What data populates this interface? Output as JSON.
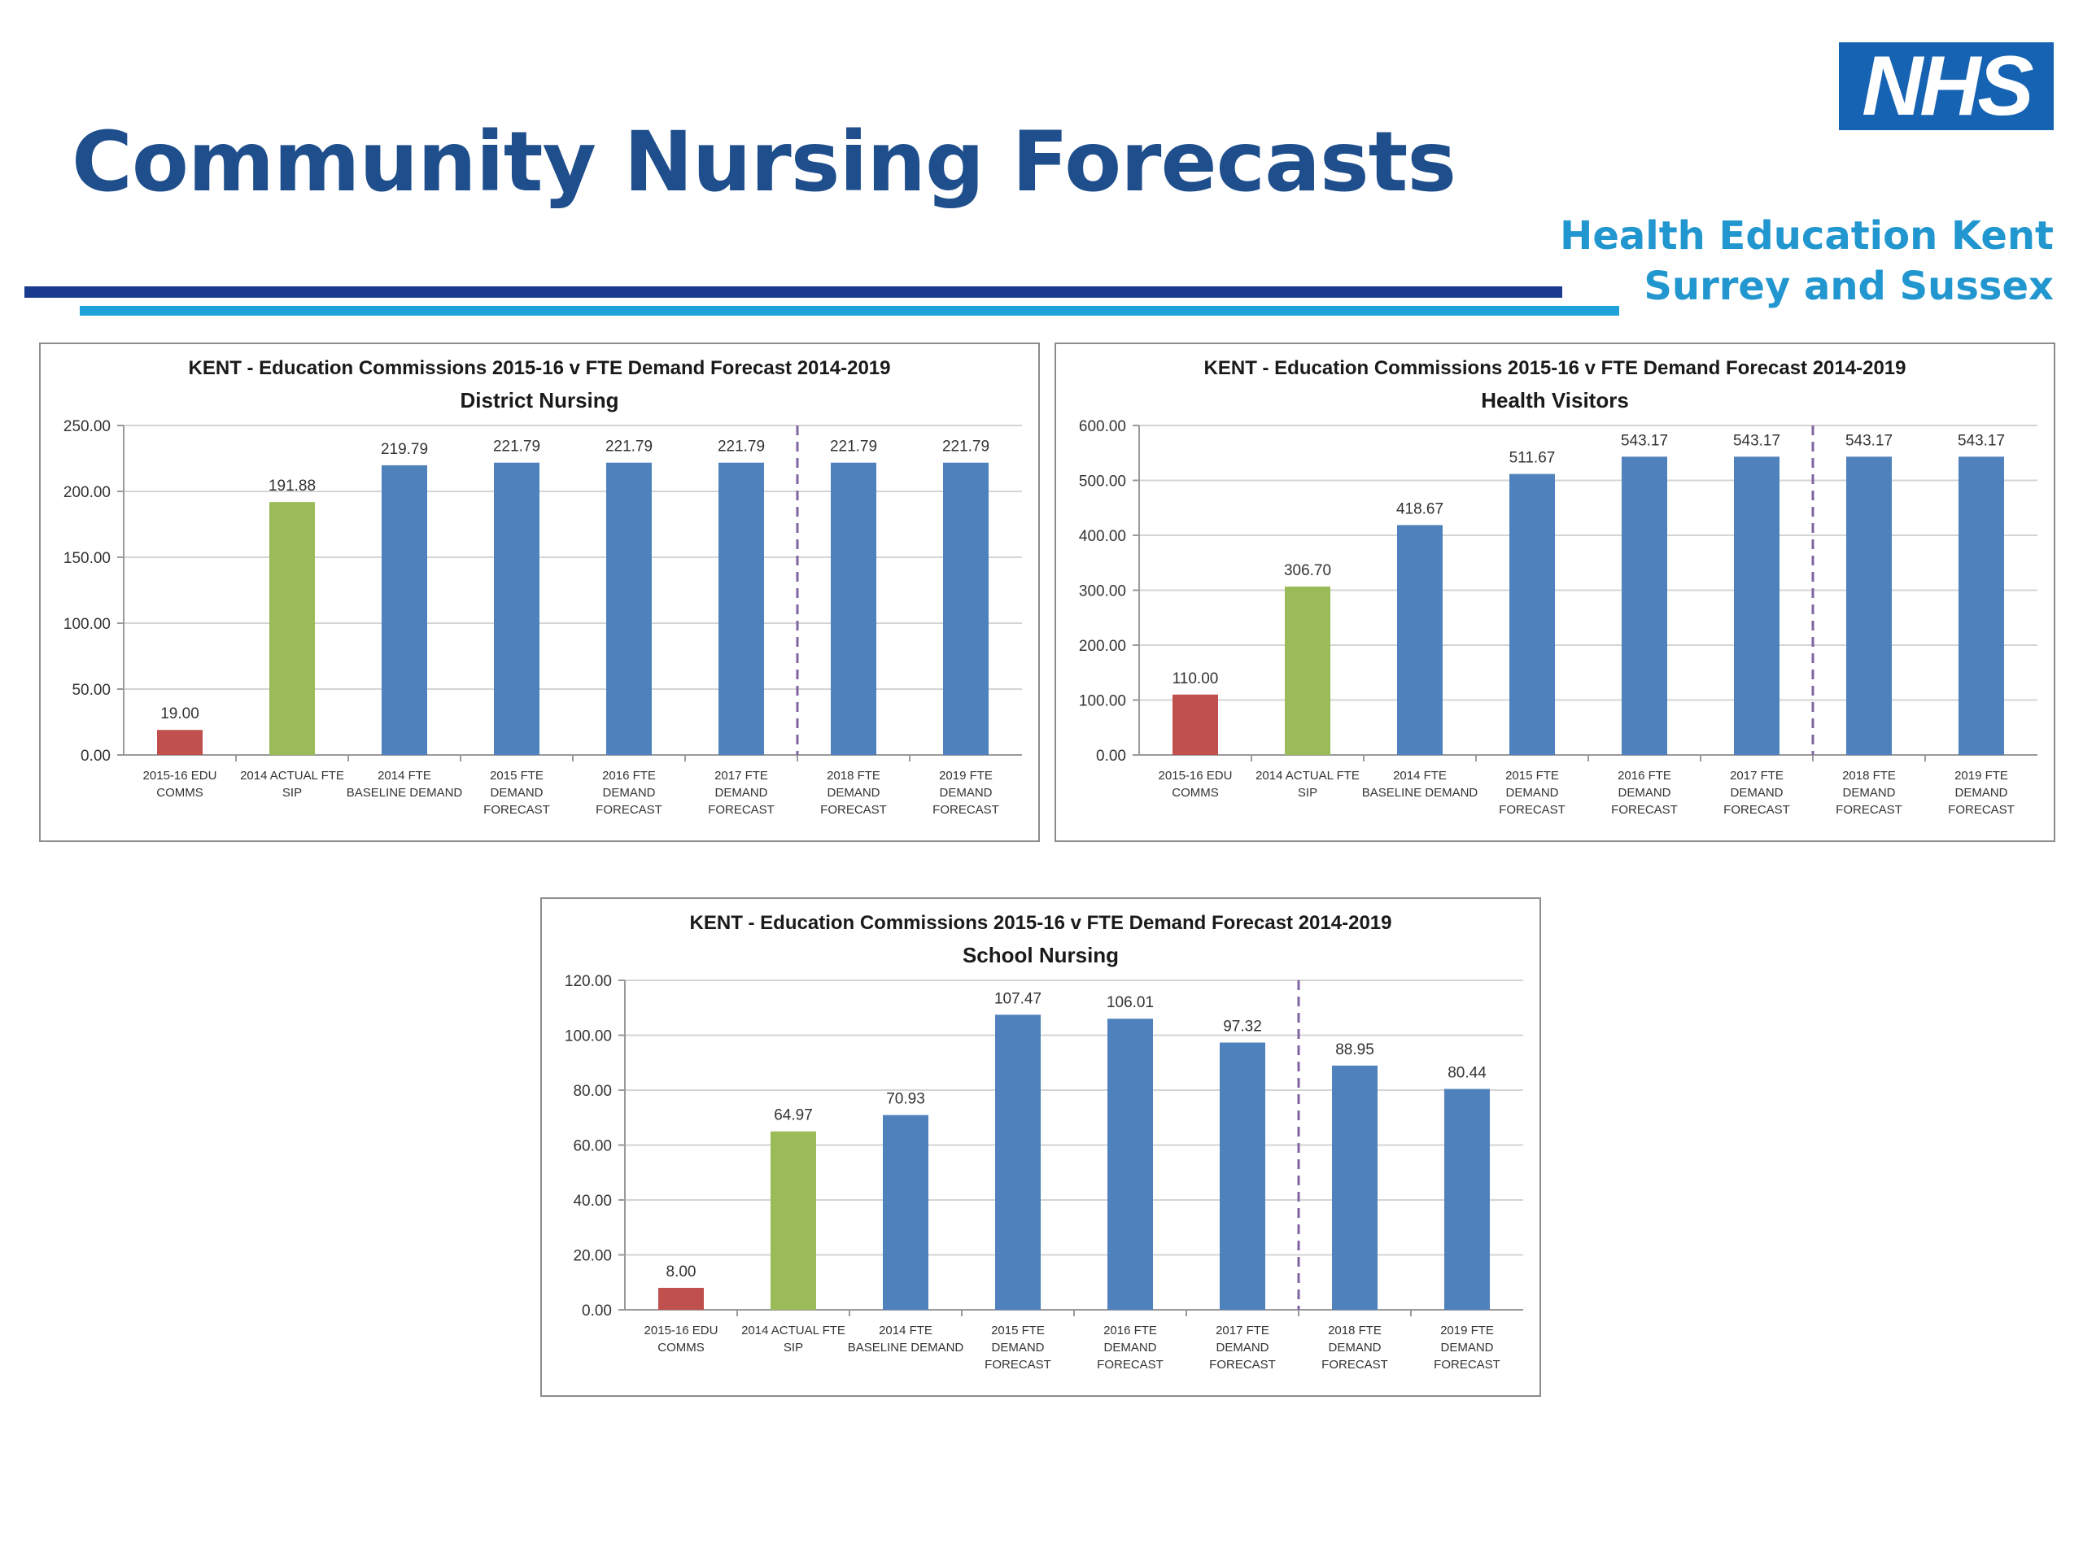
{
  "header": {
    "title": "Community Nursing Forecasts",
    "logo_text": "NHS",
    "org_line1": "Health Education Kent",
    "org_line2": "Surrey and Sussex"
  },
  "colors": {
    "title": "#1f4e8c",
    "org": "#2196cf",
    "logo_bg": "#1763b3",
    "commissions": "#c0504d",
    "actual": "#9bbb59",
    "forecast": "#4f81bd",
    "divider": "#8064a2"
  },
  "chart_data": [
    {
      "type": "bar",
      "title": "KENT - Education Commissions 2015-16 v FTE Demand Forecast 2014-2019",
      "subtitle": "District Nursing",
      "categories": [
        [
          "2015-16 EDU",
          "COMMS"
        ],
        [
          "2014 ACTUAL FTE",
          "SIP"
        ],
        [
          "2014 FTE",
          "BASELINE DEMAND"
        ],
        [
          "2015 FTE",
          "DEMAND",
          "FORECAST"
        ],
        [
          "2016 FTE",
          "DEMAND",
          "FORECAST"
        ],
        [
          "2017 FTE",
          "DEMAND",
          "FORECAST"
        ],
        [
          "2018 FTE",
          "DEMAND",
          "FORECAST"
        ],
        [
          "2019 FTE",
          "DEMAND",
          "FORECAST"
        ]
      ],
      "values": [
        19.0,
        191.88,
        219.79,
        221.79,
        221.79,
        221.79,
        221.79,
        221.79
      ],
      "value_labels": [
        "19.00",
        "191.88",
        "219.79",
        "221.79",
        "221.79",
        "221.79",
        "221.79",
        "221.79"
      ],
      "bar_colors": [
        "#c0504d",
        "#9bbb59",
        "#4f81bd",
        "#4f81bd",
        "#4f81bd",
        "#4f81bd",
        "#4f81bd",
        "#4f81bd"
      ],
      "yticks": [
        "0.00",
        "50.00",
        "100.00",
        "150.00",
        "200.00",
        "250.00"
      ],
      "ylim": [
        0,
        250
      ],
      "grid": true,
      "divider_after_index": 5
    },
    {
      "type": "bar",
      "title": "KENT - Education Commissions 2015-16 v FTE Demand Forecast 2014-2019",
      "subtitle": "Health Visitors",
      "categories": [
        [
          "2015-16 EDU",
          "COMMS"
        ],
        [
          "2014 ACTUAL FTE",
          "SIP"
        ],
        [
          "2014 FTE",
          "BASELINE DEMAND"
        ],
        [
          "2015 FTE",
          "DEMAND",
          "FORECAST"
        ],
        [
          "2016 FTE",
          "DEMAND",
          "FORECAST"
        ],
        [
          "2017 FTE",
          "DEMAND",
          "FORECAST"
        ],
        [
          "2018 FTE",
          "DEMAND",
          "FORECAST"
        ],
        [
          "2019 FTE",
          "DEMAND",
          "FORECAST"
        ]
      ],
      "values": [
        110.0,
        306.7,
        418.67,
        511.67,
        543.17,
        543.17,
        543.17,
        543.17
      ],
      "value_labels": [
        "110.00",
        "306.70",
        "418.67",
        "511.67",
        "543.17",
        "543.17",
        "543.17",
        "543.17"
      ],
      "bar_colors": [
        "#c0504d",
        "#9bbb59",
        "#4f81bd",
        "#4f81bd",
        "#4f81bd",
        "#4f81bd",
        "#4f81bd",
        "#4f81bd"
      ],
      "yticks": [
        "0.00",
        "100.00",
        "200.00",
        "300.00",
        "400.00",
        "500.00",
        "600.00"
      ],
      "ylim": [
        0,
        600
      ],
      "grid": true,
      "divider_after_index": 5
    },
    {
      "type": "bar",
      "title": "KENT - Education Commissions 2015-16 v FTE Demand Forecast 2014-2019",
      "subtitle": "School Nursing",
      "categories": [
        [
          "2015-16 EDU",
          "COMMS"
        ],
        [
          "2014 ACTUAL FTE",
          "SIP"
        ],
        [
          "2014 FTE",
          "BASELINE DEMAND"
        ],
        [
          "2015 FTE",
          "DEMAND",
          "FORECAST"
        ],
        [
          "2016 FTE",
          "DEMAND",
          "FORECAST"
        ],
        [
          "2017 FTE",
          "DEMAND",
          "FORECAST"
        ],
        [
          "2018 FTE",
          "DEMAND",
          "FORECAST"
        ],
        [
          "2019 FTE",
          "DEMAND",
          "FORECAST"
        ]
      ],
      "values": [
        8.0,
        64.97,
        70.93,
        107.47,
        106.01,
        97.32,
        88.95,
        80.44
      ],
      "value_labels": [
        "8.00",
        "64.97",
        "70.93",
        "107.47",
        "106.01",
        "97.32",
        "88.95",
        "80.44"
      ],
      "bar_colors": [
        "#c0504d",
        "#9bbb59",
        "#4f81bd",
        "#4f81bd",
        "#4f81bd",
        "#4f81bd",
        "#4f81bd",
        "#4f81bd"
      ],
      "yticks": [
        "0.00",
        "20.00",
        "40.00",
        "60.00",
        "80.00",
        "100.00",
        "120.00"
      ],
      "ylim": [
        0,
        120
      ],
      "grid": true,
      "divider_after_index": 5
    }
  ]
}
